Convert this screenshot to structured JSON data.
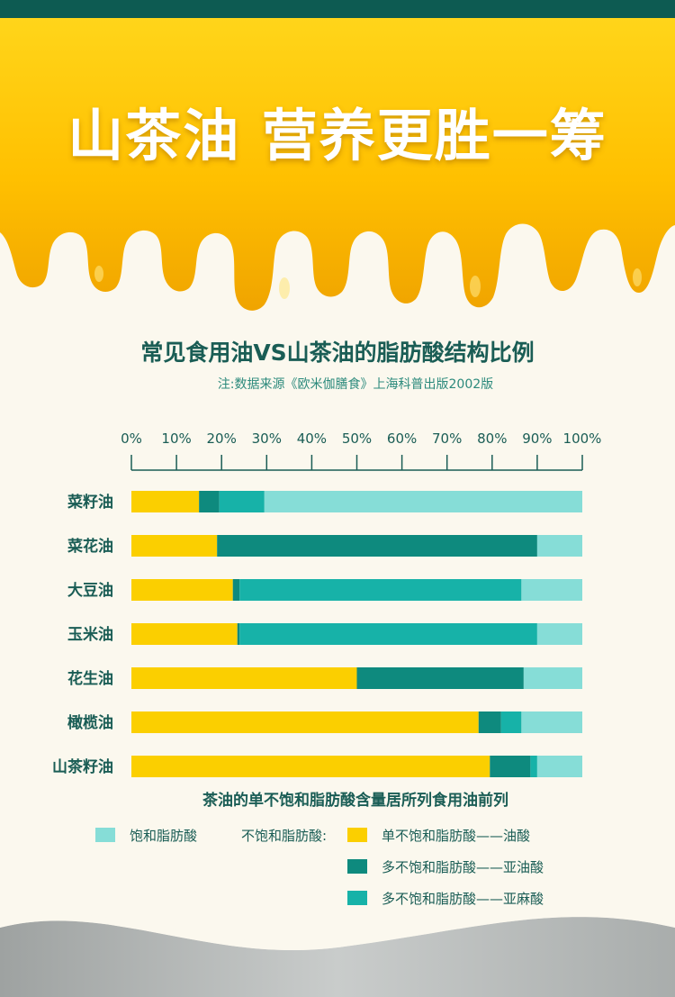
{
  "header": {
    "title": "山茶油 营养更胜一筹"
  },
  "chart_title": "常见食用油VS山茶油的脂肪酸结构比例",
  "source_note": "注:数据来源《欧米伽膳食》上海科普出版2002版",
  "caption": "茶油的单不饱和脂肪酸含量居所列食用油前列",
  "legend": {
    "saturated": "饱和脂肪酸",
    "unsaturated_label": "不饱和脂肪酸:",
    "mono": "单不饱和脂肪酸——油酸",
    "poly_linoleic": "多不饱和脂肪酸——亚油酸",
    "poly_linolenic": "多不饱和脂肪酸——亚麻酸"
  },
  "colors": {
    "mono": "#fbcf00",
    "linoleic": "#0e8a7e",
    "linolenic": "#17b2a8",
    "saturated": "#86ddd7",
    "text": "#1a5d55"
  },
  "chart_data": {
    "type": "bar",
    "orientation": "horizontal",
    "stacked": true,
    "xlim": [
      0,
      100
    ],
    "ticks": [
      "0%",
      "10%",
      "20%",
      "30%",
      "40%",
      "50%",
      "60%",
      "70%",
      "80%",
      "90%",
      "100%"
    ],
    "categories": [
      "菜籽油",
      "菜花油",
      "大豆油",
      "玉米油",
      "花生油",
      "橄榄油",
      "山茶籽油"
    ],
    "series": [
      {
        "name": "单不饱和脂肪酸——油酸",
        "values": [
          15,
          19,
          22.5,
          23.5,
          50,
          77,
          79.5
        ]
      },
      {
        "name": "多不饱和脂肪酸——亚油酸",
        "values": [
          4.5,
          71,
          1.5,
          0.5,
          37,
          5,
          9
        ]
      },
      {
        "name": "多不饱和脂肪酸——亚麻酸",
        "values": [
          10,
          0,
          62.5,
          66,
          0,
          4.5,
          1.5
        ]
      },
      {
        "name": "饱和脂肪酸",
        "values": [
          70.5,
          10,
          13.5,
          10,
          13,
          13.5,
          10
        ]
      }
    ]
  }
}
